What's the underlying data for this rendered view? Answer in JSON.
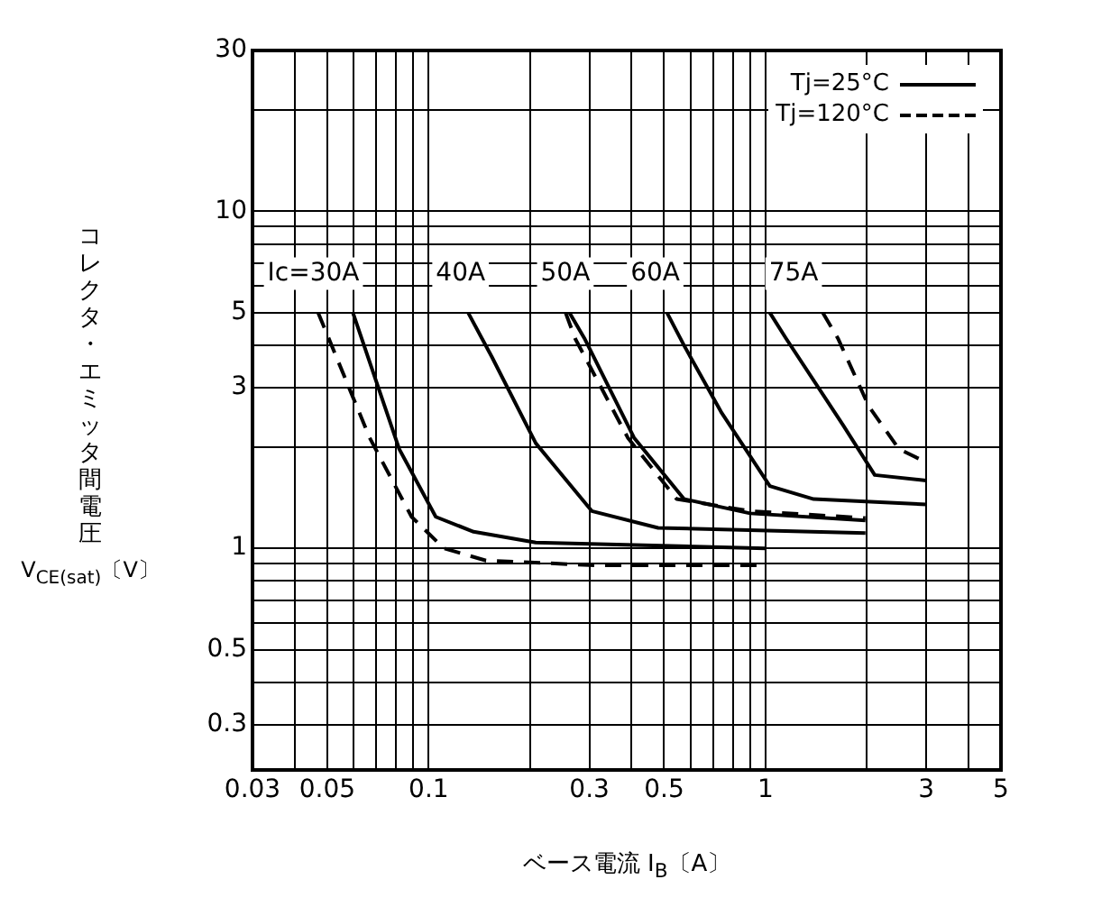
{
  "chart_data": {
    "type": "line",
    "xlabel": "ベース電流 I$_{B}$〔A〕",
    "ylabel": "コレクタ・エミッタ間電圧V$_{CE(sat)}$〔V〕",
    "log": "xy",
    "grid": true,
    "legend": "top right",
    "marker": "none",
    "xlim": [
      0.03,
      5
    ],
    "ylim": [
      0.22,
      30
    ],
    "xticks": [
      0.03,
      {
        "value": 0.04,
        "label": null
      },
      0.05,
      {
        "value": 0.06,
        "label": null
      },
      {
        "value": 0.07,
        "label": null
      },
      {
        "value": 0.08,
        "label": null
      },
      {
        "value": 0.09,
        "label": null
      },
      0.1,
      {
        "value": 0.2,
        "label": null
      },
      0.3,
      {
        "value": 0.4,
        "label": null
      },
      0.5,
      {
        "value": 0.6,
        "label": null
      },
      {
        "value": 0.7,
        "label": null
      },
      {
        "value": 0.8,
        "label": null
      },
      {
        "value": 0.9,
        "label": null
      },
      1,
      {
        "value": 2,
        "label": null
      },
      3,
      {
        "value": 4,
        "label": null
      },
      5
    ],
    "yticks": [
      0.3,
      {
        "value": 0.4,
        "label": null
      },
      0.5,
      {
        "value": 0.6,
        "label": null
      },
      {
        "value": 0.7,
        "label": null
      },
      {
        "value": 0.8,
        "label": null
      },
      {
        "value": 0.9,
        "label": null
      },
      1,
      {
        "value": 2,
        "label": null
      },
      3,
      {
        "value": 4,
        "label": null
      },
      5,
      {
        "value": 6,
        "label": null
      },
      {
        "value": 7,
        "label": null
      },
      {
        "value": 8,
        "label": null
      },
      {
        "value": 9,
        "label": null
      },
      10,
      {
        "value": 20,
        "label": null
      },
      30
    ],
    "series": [
      {
        "name": "Tj=25°C",
        "color": "#000000",
        "line_style": "solid",
        "x": [
          0.0596,
          0.0818,
          0.105,
          0.136,
          0.208,
          1.0
        ],
        "values": [
          5.0,
          1.97,
          1.24,
          1.12,
          1.04,
          1.0
        ]
      },
      {
        "name": "Tj=120°C",
        "color": "#000000",
        "line_style": "dashed",
        "x": [
          0.047,
          0.0668,
          0.089,
          0.111,
          0.148,
          0.316,
          1.0
        ],
        "values": [
          5.0,
          2.13,
          1.24,
          1.0,
          0.92,
          0.89,
          0.89
        ]
      },
      {
        "color": "#000000",
        "line_style": "solid",
        "x": [
          0.131,
          0.154,
          0.208,
          0.305,
          0.48,
          1.98
        ],
        "values": [
          5.0,
          3.7,
          2.05,
          1.29,
          1.15,
          1.11
        ]
      },
      {
        "color": "#000000",
        "line_style": "solid",
        "x": [
          0.262,
          0.29,
          0.407,
          0.573,
          0.9,
          1.98
        ],
        "values": [
          5.0,
          4.2,
          2.13,
          1.4,
          1.27,
          1.21
        ]
      },
      {
        "color": "#000000",
        "line_style": "dashed",
        "x": [
          0.255,
          0.272,
          0.39,
          0.545,
          0.9,
          1.98
        ],
        "values": [
          5.0,
          4.2,
          2.13,
          1.4,
          1.29,
          1.23
        ]
      },
      {
        "color": "#000000",
        "line_style": "solid",
        "x": [
          0.51,
          0.573,
          0.738,
          1.03,
          1.39,
          3.0
        ],
        "values": [
          5.0,
          4.0,
          2.54,
          1.53,
          1.4,
          1.35
        ]
      },
      {
        "color": "#000000",
        "line_style": "solid",
        "x": [
          1.03,
          1.15,
          1.7,
          2.11,
          3.0
        ],
        "values": [
          5.0,
          4.2,
          2.32,
          1.65,
          1.59
        ]
      },
      {
        "color": "#000000",
        "line_style": "dashed",
        "x": [
          1.48,
          1.64,
          2.03,
          2.49,
          3.0
        ],
        "values": [
          5.0,
          4.2,
          2.63,
          1.97,
          1.8
        ]
      }
    ],
    "annotations": [
      "Ic=30A",
      "40A",
      "50A",
      "60A",
      "75A"
    ]
  }
}
